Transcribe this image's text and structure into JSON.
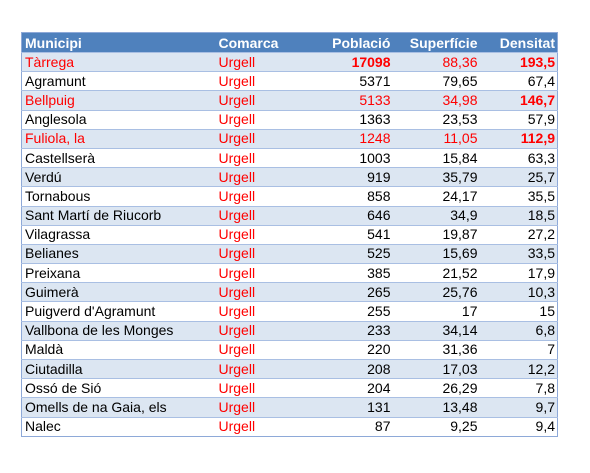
{
  "table": {
    "headers": [
      "Municipi",
      "Comarca",
      "Població",
      "Superfície",
      "Densitat"
    ],
    "rows": [
      {
        "municipi": "Tàrrega",
        "comarca": "Urgell",
        "poblacio": "17098",
        "superficie": "88,36",
        "densitat": "193,5",
        "highlight": true,
        "bold_poblacio": true,
        "bold_densitat": true
      },
      {
        "municipi": "Agramunt",
        "comarca": "Urgell",
        "poblacio": "5371",
        "superficie": "79,65",
        "densitat": "67,4",
        "highlight": false
      },
      {
        "municipi": "Bellpuig",
        "comarca": "Urgell",
        "poblacio": "5133",
        "superficie": "34,98",
        "densitat": "146,7",
        "highlight": true,
        "bold_densitat": true
      },
      {
        "municipi": "Anglesola",
        "comarca": "Urgell",
        "poblacio": "1363",
        "superficie": "23,53",
        "densitat": "57,9",
        "highlight": false
      },
      {
        "municipi": "Fuliola, la",
        "comarca": "Urgell",
        "poblacio": "1248",
        "superficie": "11,05",
        "densitat": "112,9",
        "highlight": true,
        "bold_densitat": true
      },
      {
        "municipi": "Castellserà",
        "comarca": "Urgell",
        "poblacio": "1003",
        "superficie": "15,84",
        "densitat": "63,3",
        "highlight": false
      },
      {
        "municipi": "Verdú",
        "comarca": "Urgell",
        "poblacio": "919",
        "superficie": "35,79",
        "densitat": "25,7",
        "highlight": false
      },
      {
        "municipi": "Tornabous",
        "comarca": "Urgell",
        "poblacio": "858",
        "superficie": "24,17",
        "densitat": "35,5",
        "highlight": false
      },
      {
        "municipi": "Sant Martí de Riucorb",
        "comarca": "Urgell",
        "poblacio": "646",
        "superficie": "34,9",
        "densitat": "18,5",
        "highlight": false
      },
      {
        "municipi": "Vilagrassa",
        "comarca": "Urgell",
        "poblacio": "541",
        "superficie": "19,87",
        "densitat": "27,2",
        "highlight": false
      },
      {
        "municipi": "Belianes",
        "comarca": "Urgell",
        "poblacio": "525",
        "superficie": "15,69",
        "densitat": "33,5",
        "highlight": false
      },
      {
        "municipi": "Preixana",
        "comarca": "Urgell",
        "poblacio": "385",
        "superficie": "21,52",
        "densitat": "17,9",
        "highlight": false
      },
      {
        "municipi": "Guimerà",
        "comarca": "Urgell",
        "poblacio": "265",
        "superficie": "25,76",
        "densitat": "10,3",
        "highlight": false
      },
      {
        "municipi": "Puigverd d'Agramunt",
        "comarca": "Urgell",
        "poblacio": "255",
        "superficie": "17",
        "densitat": "15",
        "highlight": false
      },
      {
        "municipi": "Vallbona de les Monges",
        "comarca": "Urgell",
        "poblacio": "233",
        "superficie": "34,14",
        "densitat": "6,8",
        "highlight": false
      },
      {
        "municipi": "Maldà",
        "comarca": "Urgell",
        "poblacio": "220",
        "superficie": "31,36",
        "densitat": "7",
        "highlight": false
      },
      {
        "municipi": "Ciutadilla",
        "comarca": "Urgell",
        "poblacio": "208",
        "superficie": "17,03",
        "densitat": "12,2",
        "highlight": false
      },
      {
        "municipi": "Ossó de Sió",
        "comarca": "Urgell",
        "poblacio": "204",
        "superficie": "26,29",
        "densitat": "7,8",
        "highlight": false
      },
      {
        "municipi": "Omells de na Gaia, els",
        "comarca": "Urgell",
        "poblacio": "131",
        "superficie": "13,48",
        "densitat": "9,7",
        "highlight": false
      },
      {
        "municipi": "Nalec",
        "comarca": "Urgell",
        "poblacio": "87",
        "superficie": "9,25",
        "densitat": "9,4",
        "highlight": false
      }
    ]
  },
  "colors": {
    "header_bg": "#4f81bd",
    "header_text": "#ffffff",
    "band_row": "#dce6f2",
    "plain_row": "#ffffff",
    "highlight_text": "#ff0000",
    "grid_line": "#a9bfe3"
  }
}
